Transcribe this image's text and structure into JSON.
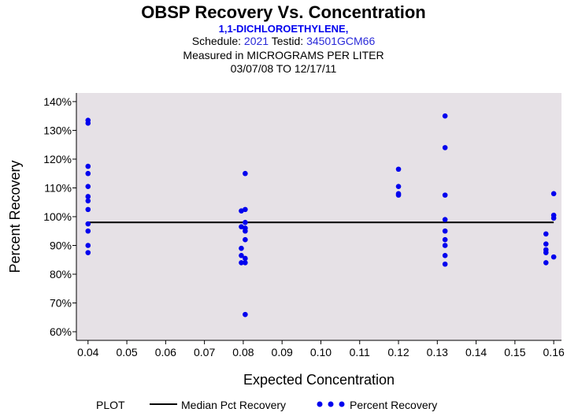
{
  "header": {
    "title": "OBSP Recovery Vs. Concentration",
    "compound": "1,1-DICHLOROETHYLENE,",
    "schedule_label": "Schedule:",
    "schedule_value": "2021",
    "testid_label": "Testid:",
    "testid_value": "34501GCM66",
    "measured_label": "Measured in",
    "units": "MICROGRAMS PER LITER",
    "date_range": "03/07/08 TO 12/17/11"
  },
  "legend": {
    "plot_label": "PLOT",
    "median_label": "Median Pct Recovery",
    "points_label": "Percent Recovery"
  },
  "colors": {
    "plot_background": "#e6e1e6",
    "points": "#0000ee",
    "median_line": "#000000"
  },
  "chart_data": {
    "type": "scatter",
    "title": "OBSP Recovery Vs. Concentration",
    "xlabel": "Expected Concentration",
    "ylabel": "Percent Recovery",
    "xlim": [
      0.037,
      0.162
    ],
    "ylim": [
      57,
      143
    ],
    "x_ticks": [
      0.04,
      0.05,
      0.06,
      0.07,
      0.08,
      0.09,
      0.1,
      0.11,
      0.12,
      0.13,
      0.14,
      0.15,
      0.16
    ],
    "x_tick_labels": [
      "0.04",
      "0.05",
      "0.06",
      "0.07",
      "0.08",
      "0.09",
      "0.10",
      "0.11",
      "0.12",
      "0.13",
      "0.14",
      "0.15",
      "0.16"
    ],
    "y_ticks": [
      60,
      70,
      80,
      90,
      100,
      110,
      120,
      130,
      140
    ],
    "y_tick_labels": [
      "60%",
      "70%",
      "80%",
      "90%",
      "100%",
      "110%",
      "120%",
      "130%",
      "140%"
    ],
    "median": 98,
    "series": [
      {
        "name": "Percent Recovery",
        "points": [
          [
            0.04,
            133.5
          ],
          [
            0.04,
            132.5
          ],
          [
            0.04,
            117.5
          ],
          [
            0.04,
            115
          ],
          [
            0.04,
            110.5
          ],
          [
            0.04,
            107
          ],
          [
            0.04,
            105.5
          ],
          [
            0.04,
            102.5
          ],
          [
            0.04,
            97.5
          ],
          [
            0.04,
            95
          ],
          [
            0.04,
            90
          ],
          [
            0.04,
            87.5
          ],
          [
            0.0795,
            102
          ],
          [
            0.0805,
            102.5
          ],
          [
            0.0805,
            98
          ],
          [
            0.0795,
            96.5
          ],
          [
            0.0805,
            96
          ],
          [
            0.0805,
            95
          ],
          [
            0.0805,
            92
          ],
          [
            0.0795,
            89
          ],
          [
            0.0795,
            86.5
          ],
          [
            0.0805,
            85.5
          ],
          [
            0.0795,
            84
          ],
          [
            0.0805,
            84
          ],
          [
            0.0805,
            115
          ],
          [
            0.0805,
            66
          ],
          [
            0.12,
            116.5
          ],
          [
            0.12,
            110.5
          ],
          [
            0.12,
            108
          ],
          [
            0.12,
            107.5
          ],
          [
            0.132,
            135
          ],
          [
            0.132,
            124
          ],
          [
            0.132,
            107.5
          ],
          [
            0.132,
            99
          ],
          [
            0.132,
            95
          ],
          [
            0.132,
            92
          ],
          [
            0.132,
            90
          ],
          [
            0.132,
            86.5
          ],
          [
            0.132,
            83.5
          ],
          [
            0.16,
            108
          ],
          [
            0.16,
            100.5
          ],
          [
            0.16,
            99.5
          ],
          [
            0.158,
            94
          ],
          [
            0.158,
            90.5
          ],
          [
            0.158,
            88.5
          ],
          [
            0.158,
            87.5
          ],
          [
            0.16,
            86
          ],
          [
            0.158,
            84
          ]
        ]
      }
    ]
  }
}
